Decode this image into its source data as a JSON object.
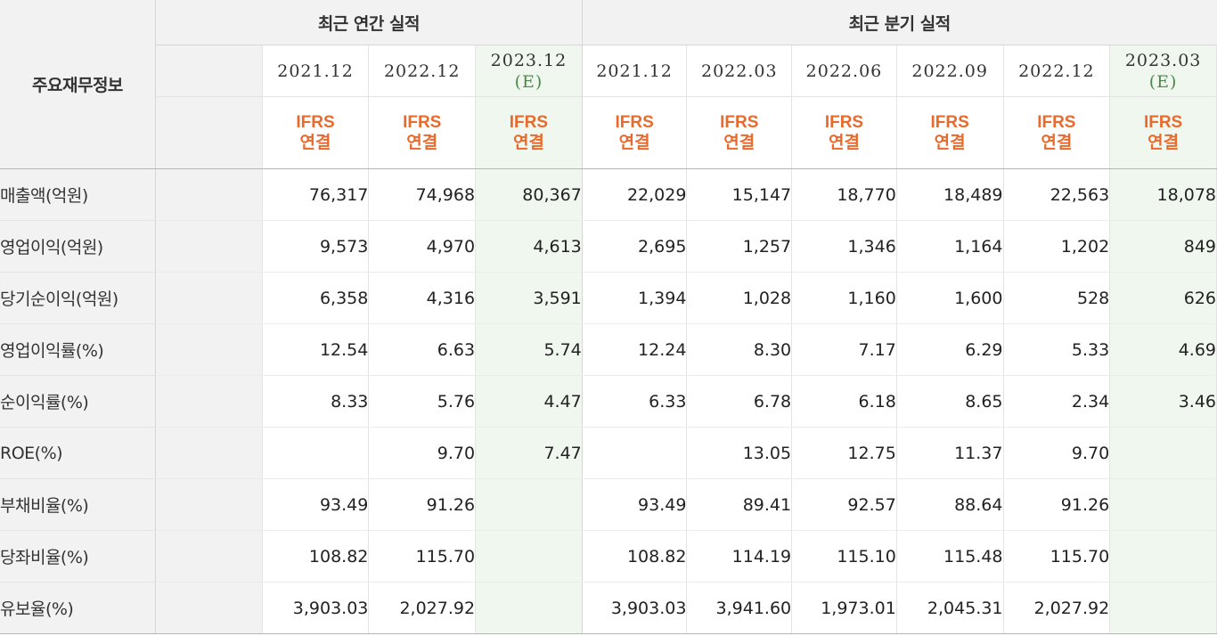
{
  "corner_label": "주요재무정보",
  "groups": [
    {
      "label": "최근 연간 실적"
    },
    {
      "label": "최근 분기 실적"
    }
  ],
  "annual_periods": [
    {
      "period": "2021.12",
      "estimate": "",
      "std_line1": "IFRS",
      "std_line2": "연결"
    },
    {
      "period": "2022.12",
      "estimate": "",
      "std_line1": "IFRS",
      "std_line2": "연결"
    },
    {
      "period": "2023.12",
      "estimate": "(E)",
      "std_line1": "IFRS",
      "std_line2": "연결"
    }
  ],
  "quarterly_periods": [
    {
      "period": "2021.12",
      "estimate": "",
      "std_line1": "IFRS",
      "std_line2": "연결"
    },
    {
      "period": "2022.03",
      "estimate": "",
      "std_line1": "IFRS",
      "std_line2": "연결"
    },
    {
      "period": "2022.06",
      "estimate": "",
      "std_line1": "IFRS",
      "std_line2": "연결"
    },
    {
      "period": "2022.09",
      "estimate": "",
      "std_line1": "IFRS",
      "std_line2": "연결"
    },
    {
      "period": "2022.12",
      "estimate": "",
      "std_line1": "IFRS",
      "std_line2": "연결"
    },
    {
      "period": "2023.03",
      "estimate": "(E)",
      "std_line1": "IFRS",
      "std_line2": "연결"
    }
  ],
  "rows": [
    {
      "label": "매출액(억원)",
      "annual": [
        "76,317",
        "74,968",
        "80,367"
      ],
      "quarterly": [
        "22,029",
        "15,147",
        "18,770",
        "18,489",
        "22,563",
        "18,078"
      ]
    },
    {
      "label": "영업이익(억원)",
      "annual": [
        "9,573",
        "4,970",
        "4,613"
      ],
      "quarterly": [
        "2,695",
        "1,257",
        "1,346",
        "1,164",
        "1,202",
        "849"
      ]
    },
    {
      "label": "당기순이익(억원)",
      "annual": [
        "6,358",
        "4,316",
        "3,591"
      ],
      "quarterly": [
        "1,394",
        "1,028",
        "1,160",
        "1,600",
        "528",
        "626"
      ]
    },
    {
      "label": "영업이익률(%)",
      "annual": [
        "12.54",
        "6.63",
        "5.74"
      ],
      "quarterly": [
        "12.24",
        "8.30",
        "7.17",
        "6.29",
        "5.33",
        "4.69"
      ]
    },
    {
      "label": "순이익률(%)",
      "annual": [
        "8.33",
        "5.76",
        "4.47"
      ],
      "quarterly": [
        "6.33",
        "6.78",
        "6.18",
        "8.65",
        "2.34",
        "3.46"
      ]
    },
    {
      "label": "ROE(%)",
      "annual": [
        "",
        "9.70",
        "7.47"
      ],
      "quarterly": [
        "",
        "13.05",
        "12.75",
        "11.37",
        "9.70",
        ""
      ]
    },
    {
      "label": "부채비율(%)",
      "annual": [
        "93.49",
        "91.26",
        ""
      ],
      "quarterly": [
        "93.49",
        "89.41",
        "92.57",
        "88.64",
        "91.26",
        ""
      ]
    },
    {
      "label": "당좌비율(%)",
      "annual": [
        "108.82",
        "115.70",
        ""
      ],
      "quarterly": [
        "108.82",
        "114.19",
        "115.10",
        "115.48",
        "115.70",
        ""
      ]
    },
    {
      "label": "유보율(%)",
      "annual": [
        "3,903.03",
        "2,027.92",
        ""
      ],
      "quarterly": [
        "3,903.03",
        "3,941.60",
        "1,973.01",
        "2,045.31",
        "2,027.92",
        ""
      ]
    }
  ]
}
